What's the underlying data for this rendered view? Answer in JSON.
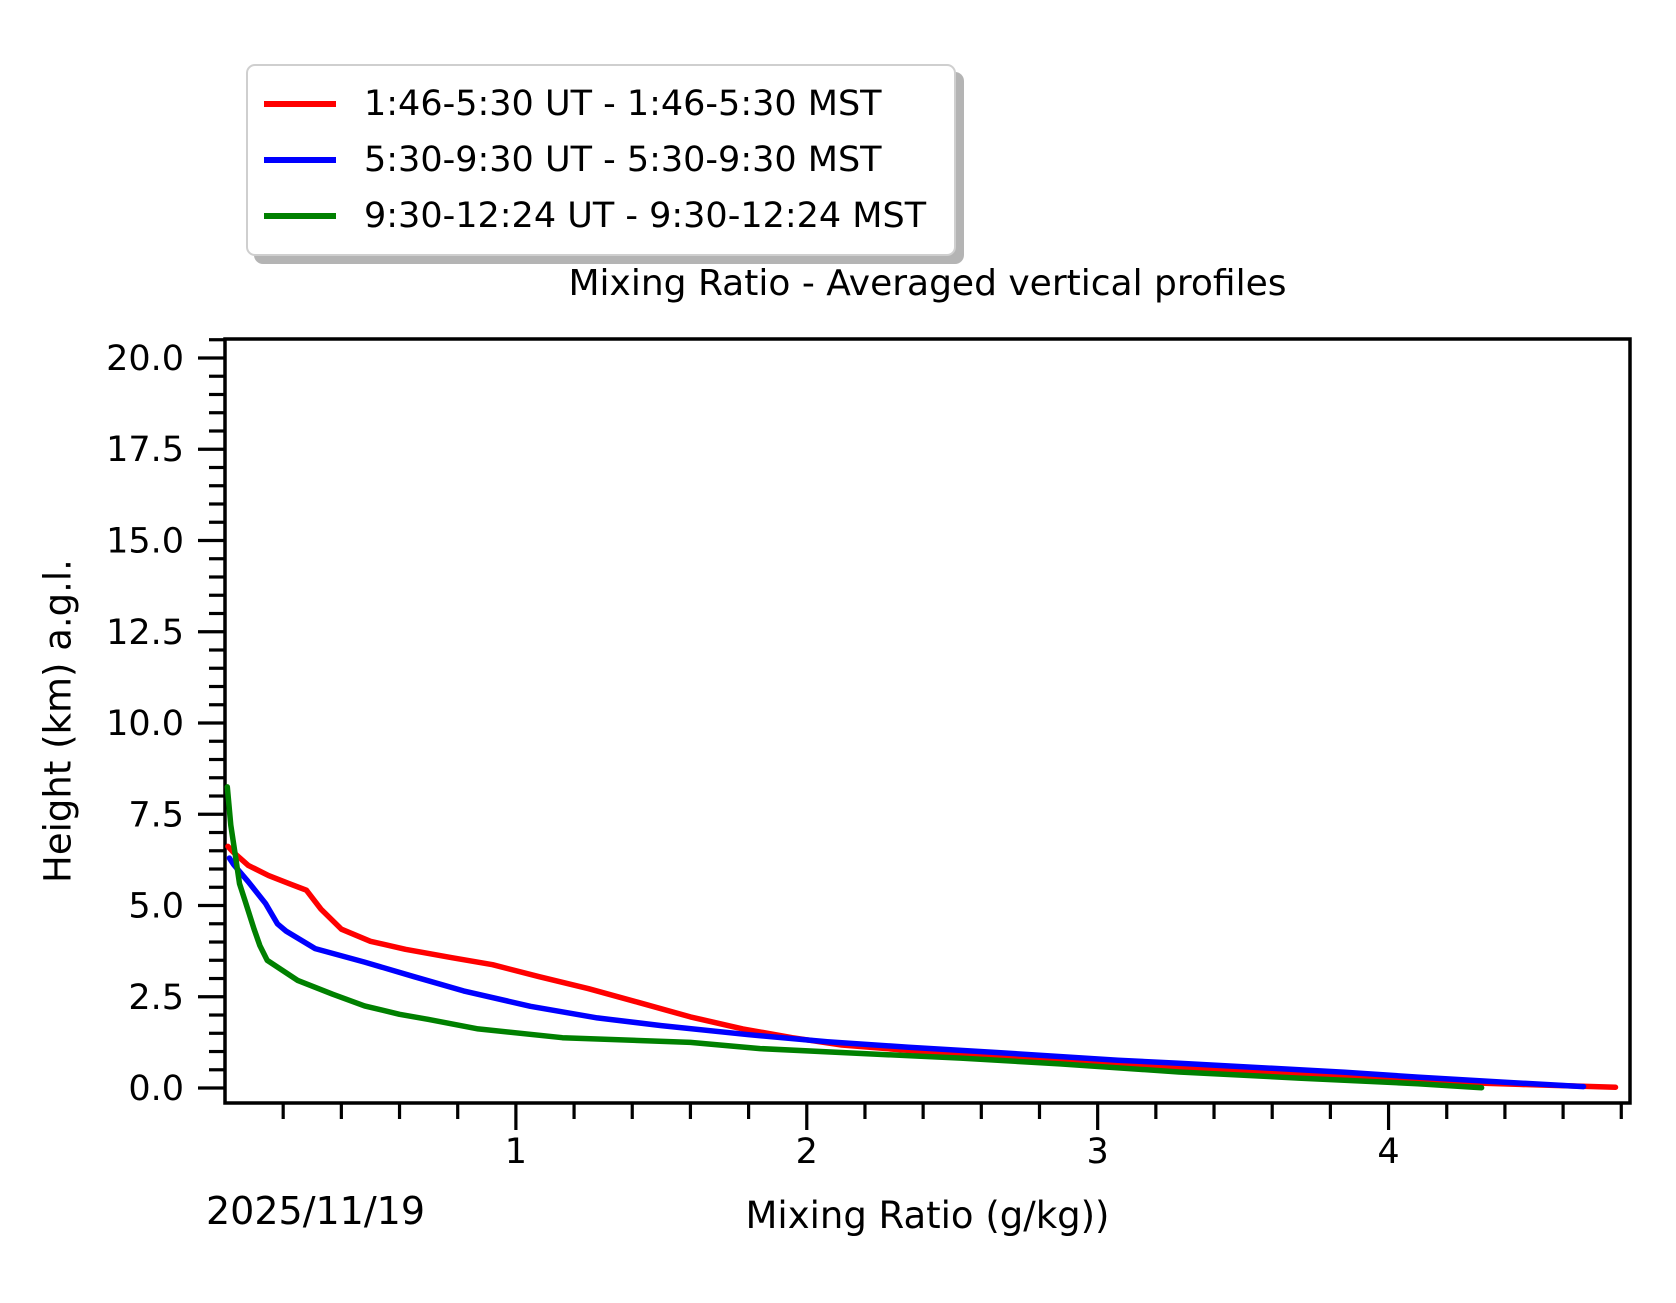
{
  "chart_data": {
    "type": "line",
    "title": "Mixing Ratio - Averaged vertical profiles",
    "xlabel": "Mixing Ratio (g/kg))",
    "ylabel": "Height (km) a.g.l.",
    "date_annotation": "2025/11/19",
    "xlim": [
      0,
      4.83
    ],
    "ylim": [
      -0.41,
      20.52
    ],
    "x_major_ticks": [
      1,
      2,
      3,
      4
    ],
    "x_tick_labels": [
      "1",
      "2",
      "3",
      "4"
    ],
    "x_minor_step": 0.2,
    "y_major_ticks": [
      0,
      2.5,
      5,
      7.5,
      10,
      12.5,
      15,
      17.5,
      20
    ],
    "y_tick_labels": [
      "0.0",
      "2.5",
      "5.0",
      "7.5",
      "10.0",
      "12.5",
      "15.0",
      "17.5",
      "20.0"
    ],
    "y_minor_step": 0.5,
    "grid": false,
    "legend_position": "top-left",
    "axis_color": "#000000",
    "series": [
      {
        "name": "1:46-5:30 UT - 1:46-5:30 MST",
        "color": "#ff0000",
        "points": [
          [
            0.01,
            6.62
          ],
          [
            0.03,
            6.45
          ],
          [
            0.08,
            6.1
          ],
          [
            0.15,
            5.82
          ],
          [
            0.22,
            5.6
          ],
          [
            0.28,
            5.42
          ],
          [
            0.33,
            4.9
          ],
          [
            0.4,
            4.35
          ],
          [
            0.5,
            4.02
          ],
          [
            0.62,
            3.8
          ],
          [
            0.78,
            3.57
          ],
          [
            0.92,
            3.38
          ],
          [
            1.08,
            3.05
          ],
          [
            1.25,
            2.72
          ],
          [
            1.42,
            2.35
          ],
          [
            1.6,
            1.95
          ],
          [
            1.78,
            1.62
          ],
          [
            1.95,
            1.38
          ],
          [
            2.12,
            1.18
          ],
          [
            2.35,
            1.03
          ],
          [
            2.65,
            0.89
          ],
          [
            3.0,
            0.7
          ],
          [
            3.3,
            0.56
          ],
          [
            3.7,
            0.37
          ],
          [
            4.1,
            0.19
          ],
          [
            4.45,
            0.1
          ],
          [
            4.78,
            0.02
          ]
        ]
      },
      {
        "name": "5:30-9:30 UT - 5:30-9:30 MST",
        "color": "#0000ff",
        "points": [
          [
            0.015,
            6.3
          ],
          [
            0.03,
            6.12
          ],
          [
            0.08,
            5.65
          ],
          [
            0.14,
            5.05
          ],
          [
            0.18,
            4.5
          ],
          [
            0.21,
            4.3
          ],
          [
            0.31,
            3.82
          ],
          [
            0.48,
            3.45
          ],
          [
            0.65,
            3.05
          ],
          [
            0.82,
            2.66
          ],
          [
            1.05,
            2.24
          ],
          [
            1.28,
            1.92
          ],
          [
            1.5,
            1.71
          ],
          [
            1.8,
            1.46
          ],
          [
            2.07,
            1.27
          ],
          [
            2.35,
            1.12
          ],
          [
            2.66,
            0.97
          ],
          [
            3.07,
            0.76
          ],
          [
            3.28,
            0.68
          ],
          [
            3.6,
            0.54
          ],
          [
            3.85,
            0.43
          ],
          [
            4.1,
            0.3
          ],
          [
            4.4,
            0.16
          ],
          [
            4.67,
            0.04
          ]
        ]
      },
      {
        "name": "9:30-12:24 UT - 9:30-12:24 MST",
        "color": "#008000",
        "points": [
          [
            0.008,
            8.25
          ],
          [
            0.02,
            7.2
          ],
          [
            0.035,
            6.4
          ],
          [
            0.05,
            5.6
          ],
          [
            0.07,
            5.1
          ],
          [
            0.1,
            4.35
          ],
          [
            0.12,
            3.9
          ],
          [
            0.145,
            3.5
          ],
          [
            0.25,
            2.95
          ],
          [
            0.37,
            2.57
          ],
          [
            0.48,
            2.25
          ],
          [
            0.6,
            2.02
          ],
          [
            0.7,
            1.88
          ],
          [
            0.87,
            1.62
          ],
          [
            1.16,
            1.38
          ],
          [
            1.6,
            1.25
          ],
          [
            1.84,
            1.08
          ],
          [
            2.18,
            0.95
          ],
          [
            2.53,
            0.82
          ],
          [
            2.87,
            0.66
          ],
          [
            3.28,
            0.44
          ],
          [
            3.7,
            0.27
          ],
          [
            4.1,
            0.12
          ],
          [
            4.32,
            0.01
          ]
        ]
      }
    ]
  }
}
